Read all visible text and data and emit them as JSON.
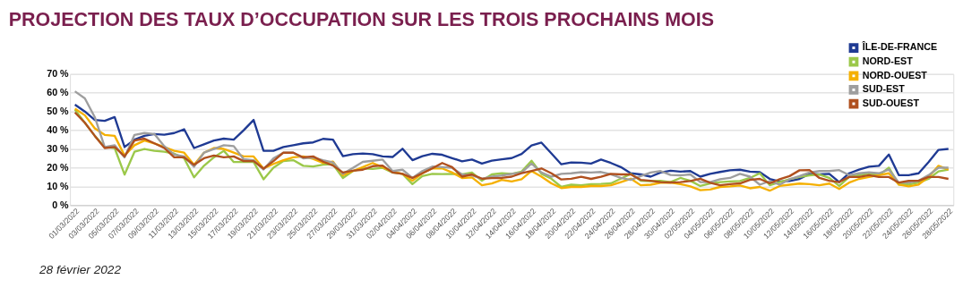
{
  "chart_data": {
    "type": "line",
    "title": "PROJECTION DES TAUX D’OCCUPATION SUR LES TROIS PROCHAINS MOIS",
    "categories": [
      "01/03/2022",
      null,
      "03/03/2022",
      null,
      "05/03/2022",
      null,
      "07/03/2022",
      null,
      "09/03/2022",
      null,
      "11/03/2022",
      null,
      "13/03/2022",
      null,
      "15/03/2022",
      null,
      "17/03/2022",
      null,
      "19/03/2022",
      null,
      "21/03/2022",
      null,
      "23/03/2022",
      null,
      "25/03/2022",
      null,
      "27/03/2022",
      null,
      "29/03/2022",
      null,
      "31/03/2022",
      null,
      "02/04/2022",
      null,
      "04/04/2022",
      null,
      "06/04/2022",
      null,
      "08/04/2022",
      null,
      "10/04/2022",
      null,
      "12/04/2022",
      null,
      "14/04/2022",
      null,
      "16/04/2022",
      null,
      "18/04/2022",
      null,
      "20/04/2022",
      null,
      "22/04/2022",
      null,
      "24/04/2022",
      null,
      "26/04/2022",
      null,
      "28/04/2022",
      null,
      "30/04/2022",
      null,
      "02/05/2022",
      null,
      "04/05/2022",
      null,
      "06/05/2022",
      null,
      "08/05/2022",
      null,
      "10/05/2022",
      null,
      "12/05/2022",
      null,
      "14/05/2022",
      null,
      "16/05/2022",
      null,
      "18/05/2022",
      null,
      "20/05/2022",
      null,
      "22/05/2022",
      null,
      "24/05/2022",
      null,
      "26/05/2022",
      null,
      "28/05/2022"
    ],
    "series": [
      {
        "name": "ÎLE-DE-FRANCE",
        "color": "#1f3a93",
        "values": [
          53.7,
          50,
          45.5,
          45,
          47,
          31,
          35,
          37,
          38,
          37.6,
          38.5,
          40.5,
          30.5,
          32.5,
          34.5,
          35.5,
          35,
          40,
          45.5,
          29,
          29,
          31,
          32,
          33,
          33.5,
          35.4,
          35,
          26.1,
          27.2,
          27.6,
          27.2,
          26,
          25.7,
          30.1,
          24,
          26.1,
          27.4,
          26.9,
          25.1,
          23.4,
          24.3,
          22.2,
          23.7,
          24.5,
          25.1,
          27.3,
          31.9,
          33.4,
          27.6,
          21.8,
          22.8,
          22.7,
          22.2,
          24.3,
          22.5,
          20.3,
          17,
          16.4,
          15.2,
          17.4,
          18.4,
          17.9,
          18.2,
          15.2,
          16.7,
          17.7,
          18.6,
          18.9,
          17.9,
          17.6,
          14,
          12.6,
          12.9,
          14,
          16.7,
          16.4,
          16.7,
          12.3,
          17,
          19,
          20.5,
          21,
          27,
          16,
          16,
          17,
          23,
          29.5,
          30
        ]
      },
      {
        "name": "NORD-EST",
        "color": "#9bc84a",
        "values": [
          51,
          44,
          37,
          31,
          30.5,
          16.3,
          28.5,
          30,
          29,
          28.5,
          27.5,
          25,
          14.8,
          21,
          25.5,
          29,
          23,
          23,
          23,
          13.8,
          20,
          23.5,
          24,
          21,
          20.6,
          21.6,
          21.8,
          14.5,
          18.2,
          19.6,
          19.3,
          19.9,
          17.4,
          16.7,
          11.2,
          15.5,
          16.7,
          16.6,
          16.7,
          16.4,
          17.4,
          13,
          16.4,
          17,
          16.7,
          17.9,
          23.7,
          16.7,
          14.1,
          9.7,
          10.9,
          10.6,
          11.2,
          11.3,
          11.6,
          14.1,
          16.7,
          13,
          12.8,
          13,
          12.3,
          14.5,
          13,
          10.2,
          11.6,
          12.3,
          12.6,
          12.9,
          14.5,
          17,
          10.6,
          12.3,
          13.8,
          15,
          15.9,
          16.3,
          14.5,
          10.2,
          15,
          16,
          17,
          16,
          20,
          11,
          11,
          12,
          14,
          18,
          19
        ]
      },
      {
        "name": "NORD-OUEST",
        "color": "#f5b000",
        "values": [
          51.5,
          48,
          41,
          37.5,
          37,
          26.5,
          32,
          34.5,
          33,
          31,
          29,
          28,
          21.5,
          28,
          30.5,
          30,
          28,
          26,
          26,
          19.5,
          22,
          24,
          25.5,
          26,
          24.7,
          22.5,
          23.2,
          15.9,
          18.2,
          20.3,
          22.5,
          20.3,
          17.9,
          16.7,
          13,
          17,
          19.6,
          19.6,
          17.4,
          14.5,
          14.8,
          10.6,
          11.6,
          13.5,
          12.6,
          13.8,
          18.2,
          15.2,
          11.6,
          9.1,
          9.7,
          9.7,
          10.2,
          10.2,
          10.6,
          12.3,
          14.1,
          10.6,
          10.9,
          11.9,
          12.1,
          11.2,
          10,
          8,
          8.3,
          9.7,
          10,
          10.5,
          9,
          9.7,
          7.7,
          10.2,
          10.9,
          11.5,
          11.2,
          10.6,
          11.5,
          8.6,
          12,
          14,
          15,
          16,
          17,
          11,
          10,
          11,
          15,
          21,
          19
        ]
      },
      {
        "name": "SUD-EST",
        "color": "#9e9e9e",
        "values": [
          60.8,
          57,
          47,
          31,
          32,
          25.5,
          37.5,
          38.5,
          38,
          31.5,
          27,
          26,
          20.5,
          28,
          30,
          32,
          31.5,
          24.5,
          24,
          19,
          25,
          28,
          28,
          25,
          25.4,
          24,
          22.8,
          16.7,
          19.9,
          23.1,
          23.7,
          24.3,
          18.2,
          18.9,
          14.5,
          18.2,
          20.6,
          20.3,
          19.9,
          16.4,
          15.9,
          14.1,
          15.2,
          15.8,
          16.7,
          17.4,
          22.2,
          17.4,
          15.2,
          16.7,
          17,
          17.6,
          17.4,
          17.7,
          16.4,
          14.5,
          13.5,
          15.5,
          17.4,
          18.2,
          16.1,
          15.9,
          16.4,
          12.3,
          12.3,
          13.8,
          14.5,
          16.7,
          15.2,
          10.9,
          12.8,
          10.9,
          13.8,
          15.5,
          17.4,
          18.2,
          18.2,
          18.7,
          16,
          17,
          17.5,
          17,
          19,
          12,
          12,
          13,
          16,
          20,
          20
        ]
      },
      {
        "name": "SUD-OUEST",
        "color": "#b0501e",
        "values": [
          49.5,
          44,
          37,
          30.5,
          31,
          26,
          34.5,
          35.5,
          33,
          30.5,
          25.5,
          25.5,
          21.5,
          25,
          26.5,
          25.5,
          26,
          23.5,
          23.5,
          19.5,
          23.5,
          28,
          28,
          25.5,
          26,
          23.2,
          21.1,
          17.4,
          18.4,
          18.9,
          20.8,
          21.1,
          17.4,
          16.7,
          14.5,
          17,
          19.6,
          22.5,
          20.3,
          15.2,
          16.4,
          14.1,
          14.4,
          14.5,
          15.2,
          17,
          18.2,
          19.6,
          17,
          13.7,
          14.1,
          15.1,
          14,
          15.1,
          16.7,
          16.4,
          16.4,
          13.5,
          13,
          12.3,
          12.1,
          12.3,
          12.9,
          14.1,
          11.9,
          10.6,
          11.2,
          11.6,
          13.5,
          14,
          11.6,
          13.8,
          15.5,
          18.6,
          18.7,
          14.5,
          13,
          12.3,
          15,
          15,
          16,
          15,
          15,
          12,
          13,
          13,
          15,
          15,
          14
        ]
      }
    ],
    "ylim": [
      0,
      70
    ],
    "yticks": [
      {
        "value": 0,
        "label": "0 %"
      },
      {
        "value": 10,
        "label": "10 %"
      },
      {
        "value": 20,
        "label": "20 %"
      },
      {
        "value": 30,
        "label": "30 %"
      },
      {
        "value": 40,
        "label": "40 %"
      },
      {
        "value": 50,
        "label": "50 %"
      },
      {
        "value": 60,
        "label": "60 %"
      },
      {
        "value": 70,
        "label": "70 %"
      }
    ],
    "grid": "y",
    "legend": "top right",
    "marker": "none",
    "line_style": "solid",
    "annotations": [
      "28 février 2022"
    ]
  }
}
